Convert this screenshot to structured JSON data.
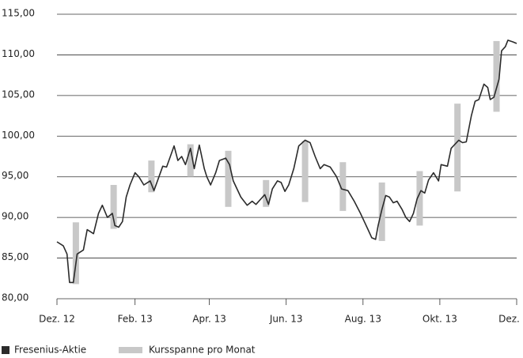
{
  "chart_data": {
    "type": "line",
    "x": [
      0,
      5,
      8,
      10,
      13,
      16,
      21,
      24,
      29,
      33,
      36,
      40,
      44,
      46,
      49,
      52,
      55,
      58,
      62,
      65,
      69,
      74,
      77,
      81,
      84,
      87,
      90,
      93,
      96,
      99,
      102,
      106,
      109,
      113,
      117,
      119,
      122,
      126,
      129,
      134,
      137,
      140,
      143,
      146,
      151,
      155,
      158,
      162,
      165,
      168,
      171,
      175,
      178,
      181,
      184,
      188,
      192,
      197,
      201,
      205,
      209,
      212,
      217,
      222,
      226,
      231,
      236,
      241,
      244,
      247,
      250,
      253,
      255,
      258,
      261,
      264,
      267,
      270,
      274,
      277,
      280,
      283,
      286,
      289,
      292,
      295,
      299,
      303,
      305,
      310,
      313,
      316,
      319,
      322,
      325,
      329,
      332,
      335,
      339,
      342,
      344,
      347,
      351,
      353,
      356,
      358,
      362,
      365
    ],
    "series": [
      {
        "name": "Fresenius-Aktie",
        "color": "#2b2b2b",
        "values": [
          87.0,
          86.5,
          85.5,
          82.0,
          82.0,
          85.5,
          86.0,
          88.5,
          88.0,
          90.5,
          91.5,
          90.0,
          90.5,
          89.0,
          88.8,
          89.5,
          92.5,
          94.0,
          95.5,
          95.0,
          94.0,
          94.5,
          93.3,
          95.0,
          96.3,
          96.2,
          97.5,
          98.8,
          97.0,
          97.5,
          96.5,
          98.5,
          96.0,
          98.9,
          96.0,
          95.0,
          94.0,
          95.5,
          97.0,
          97.3,
          96.5,
          94.5,
          93.5,
          92.5,
          91.5,
          92.0,
          91.6,
          92.3,
          92.8,
          91.6,
          93.5,
          94.5,
          94.3,
          93.2,
          94.0,
          96.0,
          98.8,
          99.5,
          99.2,
          97.5,
          96.0,
          96.5,
          96.2,
          95.0,
          93.5,
          93.3,
          92.0,
          90.5,
          89.5,
          88.5,
          87.5,
          87.3,
          89.0,
          91.0,
          92.7,
          92.5,
          91.8,
          92.0,
          91.0,
          90.0,
          89.5,
          90.5,
          92.3,
          93.3,
          93.0,
          94.6,
          95.5,
          94.5,
          96.5,
          96.3,
          98.5,
          99.0,
          99.5,
          99.2,
          99.3,
          102.5,
          104.3,
          104.5,
          106.4,
          106.0,
          104.5,
          104.8,
          107.0,
          110.5,
          111.0,
          111.8,
          111.6,
          111.4
        ]
      }
    ],
    "ranges": {
      "name": "Kursspanne pro Monat",
      "color": "#c8c8c8",
      "x": [
        15,
        45,
        75,
        106,
        136,
        166,
        197,
        227,
        258,
        288,
        318,
        349
      ],
      "low": [
        81.8,
        88.6,
        93.1,
        95.0,
        91.3,
        91.3,
        91.9,
        90.8,
        87.1,
        89.0,
        93.2,
        103.0
      ],
      "high": [
        89.4,
        94.0,
        97.0,
        99.0,
        98.2,
        94.6,
        99.4,
        96.8,
        94.3,
        95.7,
        104.0,
        111.7
      ]
    },
    "xlim": [
      0,
      365
    ],
    "xticks": [
      {
        "value": 0,
        "label": "Dez. 12"
      },
      {
        "value": 62,
        "label": "Feb. 13"
      },
      {
        "value": 121,
        "label": "Apr. 13"
      },
      {
        "value": 182,
        "label": "Jun. 13"
      },
      {
        "value": 243,
        "label": "Aug. 13"
      },
      {
        "value": 304,
        "label": "Okt. 13"
      },
      {
        "value": 365,
        "label": "Dez. 13"
      }
    ],
    "ylim": [
      80,
      115
    ],
    "yticks": [
      {
        "value": 80,
        "label": "80,00"
      },
      {
        "value": 85,
        "label": "85,00"
      },
      {
        "value": 90,
        "label": "90,00"
      },
      {
        "value": 95,
        "label": "95,00"
      },
      {
        "value": 100,
        "label": "100,00"
      },
      {
        "value": 105,
        "label": "105,00"
      },
      {
        "value": 110,
        "label": "110,00"
      },
      {
        "value": 115,
        "label": "115,00"
      }
    ],
    "grid": true
  }
}
